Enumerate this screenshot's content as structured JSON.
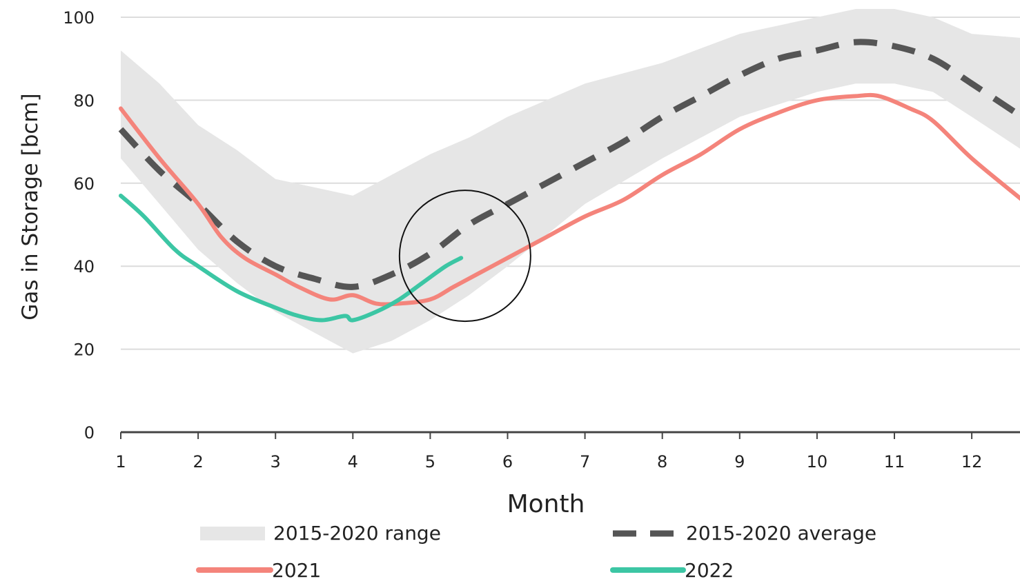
{
  "chart_data": {
    "type": "line",
    "title": "",
    "xlabel": "Month",
    "ylabel": "Gas in Storage [bcm]",
    "xlim": [
      1,
      12.65
    ],
    "ylim": [
      0,
      100
    ],
    "x_ticks": [
      1,
      2,
      3,
      4,
      5,
      6,
      7,
      8,
      9,
      10,
      11,
      12
    ],
    "y_ticks": [
      0,
      20,
      40,
      60,
      80,
      100
    ],
    "grid": "horizontal",
    "legend_position": "bottom",
    "range": {
      "name": "2015-2020 range",
      "color": "#e6e6e6",
      "x": [
        1,
        1.5,
        2,
        2.5,
        3,
        3.5,
        4,
        4.5,
        5,
        5.5,
        6,
        7,
        8,
        9,
        10,
        10.5,
        11,
        11.5,
        12,
        12.65
      ],
      "upper": [
        92,
        84,
        74,
        68,
        61,
        59,
        57,
        62,
        67,
        71,
        76,
        84,
        89,
        96,
        100,
        102,
        102,
        100,
        96,
        95
      ],
      "lower": [
        66,
        55,
        44,
        36,
        29,
        24,
        19,
        22,
        27,
        33,
        40,
        55,
        66,
        76,
        82,
        84,
        84,
        82,
        76,
        68
      ]
    },
    "series": [
      {
        "name": "2015-2020 average",
        "color": "#555555",
        "style": "dashed",
        "x": [
          1,
          1.5,
          2,
          2.5,
          3,
          3.5,
          4,
          4.5,
          5,
          5.5,
          6,
          6.5,
          7,
          7.5,
          8,
          8.5,
          9,
          9.5,
          10,
          10.5,
          11,
          11.5,
          12,
          12.65
        ],
        "y": [
          73,
          63,
          55,
          46,
          40,
          37,
          35,
          38,
          43,
          50,
          55,
          60,
          65,
          70,
          76,
          81,
          86,
          90,
          92,
          94,
          93,
          90,
          84,
          76
        ]
      },
      {
        "name": "2021",
        "color": "#f4847b",
        "style": "solid",
        "x": [
          1,
          1.5,
          2,
          2.3,
          2.6,
          3,
          3.3,
          3.7,
          4,
          4.3,
          4.6,
          5,
          5.3,
          5.6,
          6,
          6.5,
          7,
          7.5,
          8,
          8.5,
          9,
          9.5,
          10,
          10.5,
          10.8,
          11.2,
          11.5,
          12,
          12.65
        ],
        "y": [
          78,
          66,
          55,
          47,
          42,
          38,
          35,
          32,
          33,
          31,
          31,
          32,
          35,
          38,
          42,
          47,
          52,
          56,
          62,
          67,
          73,
          77,
          80,
          81,
          81,
          78,
          75,
          66,
          56
        ]
      },
      {
        "name": "2022",
        "color": "#3cc6a4",
        "style": "solid",
        "x": [
          1,
          1.3,
          1.7,
          2,
          2.5,
          3,
          3.3,
          3.6,
          3.9,
          4,
          4.3,
          4.6,
          4.9,
          5.2,
          5.4
        ],
        "y": [
          57,
          52,
          44,
          40,
          34,
          30,
          28,
          27,
          28,
          27,
          29,
          32,
          36,
          40,
          42
        ]
      }
    ],
    "annotations": [
      {
        "type": "circle",
        "x": 5.45,
        "y": 42.5
      }
    ]
  }
}
